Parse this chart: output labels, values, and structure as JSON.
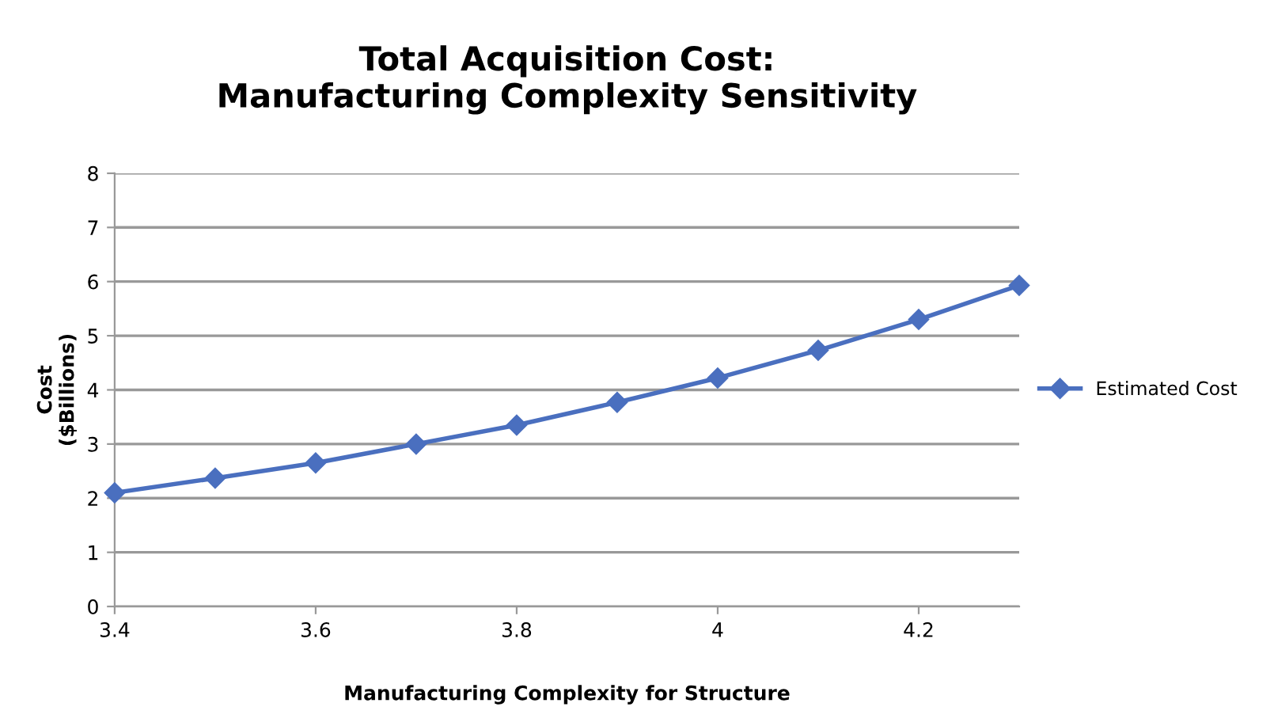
{
  "chart_data": {
    "type": "line",
    "title": "Total Acquisition Cost:\nManufacturing Complexity Sensitivity",
    "xlabel": "Manufacturing Complexity for Structure",
    "ylabel": "Cost\n($Billions)",
    "x": [
      3.4,
      3.5,
      3.6,
      3.7,
      3.8,
      3.9,
      4.0,
      4.1,
      4.2,
      4.3
    ],
    "series": [
      {
        "name": "Estimated Cost",
        "color": "#4a6fbf",
        "values": [
          2.1,
          2.37,
          2.65,
          3.0,
          3.35,
          3.77,
          4.22,
          4.73,
          5.3,
          5.93
        ]
      }
    ],
    "xlim": [
      3.4,
      4.3
    ],
    "xticks": [
      3.4,
      3.6,
      3.8,
      4,
      4.2
    ],
    "ylim": [
      0,
      8
    ],
    "yticks": [
      0,
      1,
      2,
      3,
      4,
      5,
      6,
      7,
      8
    ],
    "grid": "y",
    "legend": "right",
    "marker": "diamond",
    "line_style": "solid"
  }
}
